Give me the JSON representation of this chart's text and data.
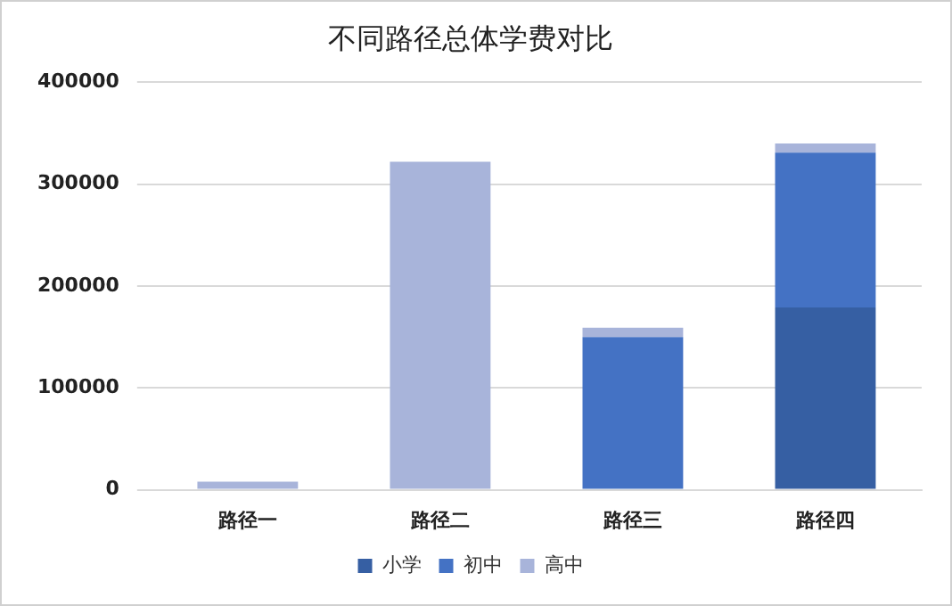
{
  "chart_data": {
    "type": "bar",
    "title": "不同路径总体学费对比",
    "categories": [
      "路径一",
      "路径二",
      "路径三",
      "路径四"
    ],
    "stacked": true,
    "series": [
      {
        "name": "小学",
        "color": "#365fa3",
        "values": [
          null,
          null,
          null,
          179000
        ]
      },
      {
        "name": "初中",
        "color": "#4472c4",
        "values": [
          null,
          null,
          150000,
          152000
        ]
      },
      {
        "name": "高中",
        "color": "#a8b4da",
        "values": [
          8000,
          322000,
          9000,
          9000
        ]
      }
    ],
    "ylim": [
      0,
      400000
    ],
    "yticks": [
      0,
      100000,
      200000,
      300000,
      400000
    ],
    "grid": "y",
    "legend": "bottom"
  }
}
